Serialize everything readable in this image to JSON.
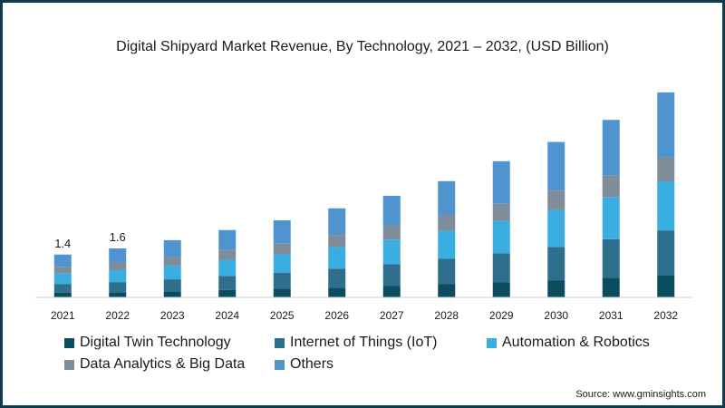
{
  "chart_data": {
    "type": "bar",
    "stacked": true,
    "title": "Digital Shipyard Market Revenue, By Technology, 2021 – 2032, (USD Billion)",
    "source": "Source: www.gminsights.com",
    "categories": [
      "2021",
      "2022",
      "2023",
      "2024",
      "2025",
      "2026",
      "2027",
      "2028",
      "2029",
      "2030",
      "2031",
      "2032"
    ],
    "series": [
      {
        "name": "Digital Twin Technology",
        "color": "#0b4d5e",
        "values": [
          0.15,
          0.17,
          0.2,
          0.24,
          0.28,
          0.32,
          0.37,
          0.43,
          0.49,
          0.56,
          0.64,
          0.73
        ]
      },
      {
        "name": "Internet of Things (IoT)",
        "color": "#2e6f8e",
        "values": [
          0.29,
          0.33,
          0.39,
          0.46,
          0.53,
          0.62,
          0.72,
          0.83,
          0.95,
          1.09,
          1.26,
          1.46
        ]
      },
      {
        "name": "Automation & Robotics",
        "color": "#3aaee0",
        "values": [
          0.34,
          0.39,
          0.45,
          0.53,
          0.6,
          0.7,
          0.8,
          0.92,
          1.06,
          1.21,
          1.38,
          1.59
        ]
      },
      {
        "name": "Data Analytics & Big Data",
        "color": "#7f8c9a",
        "values": [
          0.22,
          0.25,
          0.28,
          0.32,
          0.36,
          0.4,
          0.45,
          0.5,
          0.56,
          0.63,
          0.7,
          0.8
        ]
      },
      {
        "name": "Others",
        "color": "#4f93cf",
        "values": [
          0.4,
          0.46,
          0.55,
          0.65,
          0.75,
          0.87,
          0.98,
          1.12,
          1.39,
          1.59,
          1.82,
          2.12
        ]
      }
    ],
    "data_labels": [
      {
        "category": "2021",
        "text": "1.4"
      },
      {
        "category": "2022",
        "text": "1.6"
      }
    ],
    "ylim": [
      0,
      7.2
    ],
    "xlabel": "",
    "ylabel": "",
    "grid": false,
    "legend_position": "bottom"
  }
}
